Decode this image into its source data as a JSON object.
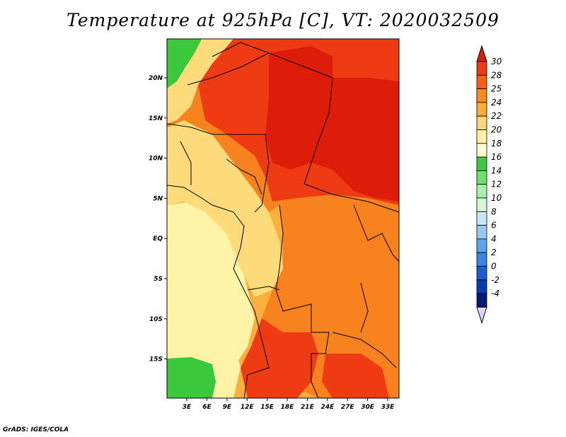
{
  "title": "Temperature at 925hPa [C], VT: 2020032509",
  "credit": "GrADS: IGES/COLA",
  "map": {
    "lon_ticks": [
      "3E",
      "6E",
      "9E",
      "12E",
      "15E",
      "18E",
      "21E",
      "24E",
      "27E",
      "30E",
      "33E"
    ],
    "lat_ticks": [
      "20N",
      "15N",
      "10N",
      "5N",
      "EQ",
      "5S",
      "10S",
      "15S"
    ],
    "regions": [
      {
        "name": "west-ocean-pale",
        "value": 20,
        "color": "#fff3a8"
      },
      {
        "name": "central-light",
        "value": 22,
        "color": "#fddb7a"
      },
      {
        "name": "sahel-mid",
        "value": 24,
        "color": "#fbb03b"
      },
      {
        "name": "congo-orange",
        "value": 25,
        "color": "#f7821e"
      },
      {
        "name": "east-deep",
        "value": 28,
        "color": "#ef3b14"
      },
      {
        "name": "chad-sudan-hot",
        "value": 30,
        "color": "#dd1c0a"
      },
      {
        "name": "nw-green",
        "value": 16,
        "color": "#3cc83c"
      },
      {
        "name": "sw-green",
        "value": 16,
        "color": "#3cc83c"
      }
    ]
  },
  "colorbar": {
    "levels": [
      "30",
      "28",
      "25",
      "24",
      "22",
      "20",
      "18",
      "16",
      "14",
      "12",
      "10",
      "8",
      "6",
      "4",
      "2",
      "0",
      "-2",
      "-4"
    ],
    "colors": [
      "#ef3b14",
      "#f85f14",
      "#f88a1e",
      "#fbae34",
      "#fdd37c",
      "#fff0a6",
      "#fdfdd0",
      "#3cc83c",
      "#6de06d",
      "#a8f0a8",
      "#d6f8d6",
      "#c8e8f8",
      "#98c8f0",
      "#5ca4ec",
      "#3a84e4",
      "#1a5cd4",
      "#0a3ab0",
      "#061a78"
    ],
    "top_arrow_color": "#dd1c0a",
    "bottom_arrow_color": "#d8d8f8"
  }
}
